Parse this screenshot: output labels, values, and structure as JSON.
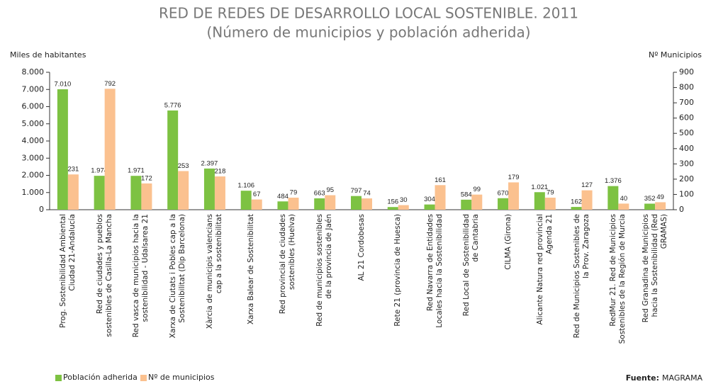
{
  "chart_data": {
    "type": "bar",
    "title": "RED DE REDES DE DESARROLLO LOCAL SOSTENIBLE. 2011",
    "subtitle": "(Número de municipios y población adherida)",
    "y_label": "Miles de habitantes",
    "y2_label": "Nº Municipios",
    "source_label": "Fuente:",
    "source": "MAGRAMA",
    "categories": [
      "Prog. Sostenibilidad Ambiental\nCiudad 21-Andalucía",
      "Red de ciudades y pueblos\nsostenibles de Casilla-La Mancha",
      "Red vasca de municipios hacia la\nsostenibilidad - Udalsarea 21",
      "Xarxa de Ciutats i Pobles cap a la\nSostenibilitat (Dip Barcelona)",
      "Xàrcia de municipis valencians\ncap a la sostenibilitat",
      "Xarxa Balear de Sostenibilitat",
      "Red provincial de ciudades\nsostenibles (Huelva)",
      "Red de municipios sostenibles\nde la provincia de Jaén",
      "AL 21 Cordobesas",
      "Rete 21 (provincia de Huesca)",
      "Red Navarra de Entidades\nLocales hacia la Sostenibilidad",
      "Red Local de Sostenibilidad\nde Cantabria",
      "CILMA (Girona)",
      "Alicante Natura red provincial\nAgenda 21",
      "Red de Municipios Sostenibles de\nla Prov. Zaragoza",
      "RedMur 21. Red de Municipios\nSostenibles de la Región de Murcia",
      "Red Granadina de Municipios\nhacia la Sostenibilidad (Red\nGRAMAS)"
    ],
    "series": [
      {
        "name": "Población adherida",
        "color": "#7dc242",
        "axis": "y",
        "values": [
          7010,
          1974,
          1971,
          5776,
          2397,
          1106,
          484,
          663,
          797,
          156,
          304,
          584,
          670,
          1021,
          162,
          1376,
          352
        ],
        "value_labels": [
          "7.010",
          "1.974",
          "1.971",
          "5.776",
          "2.397",
          "1.106",
          "484",
          "663",
          "797",
          "156",
          "304",
          "584",
          "670",
          "1.021",
          "162",
          "1.376",
          "352"
        ]
      },
      {
        "name": "Nº de municipios",
        "color": "#fbc18f",
        "axis": "y2",
        "values": [
          231,
          792,
          172,
          253,
          218,
          67,
          79,
          95,
          74,
          30,
          161,
          99,
          179,
          79,
          127,
          40,
          49
        ]
      }
    ],
    "ylim": [
      0,
      8000
    ],
    "yticks": [
      0,
      {
        "value": 1000,
        "label": "1.000"
      },
      {
        "value": 2000,
        "label": "2.000"
      },
      {
        "value": 3000,
        "label": "3.000"
      },
      {
        "value": 4000,
        "label": "4.000"
      },
      {
        "value": 5000,
        "label": "5.000"
      },
      {
        "value": 6000,
        "label": "6.000"
      },
      {
        "value": 7000,
        "label": "7.000"
      },
      {
        "value": 8000,
        "label": "8.000"
      }
    ],
    "y2lim": [
      0,
      900
    ],
    "y2ticks": [
      0,
      100,
      200,
      300,
      400,
      500,
      600,
      700,
      800,
      900
    ],
    "grid": false
  }
}
